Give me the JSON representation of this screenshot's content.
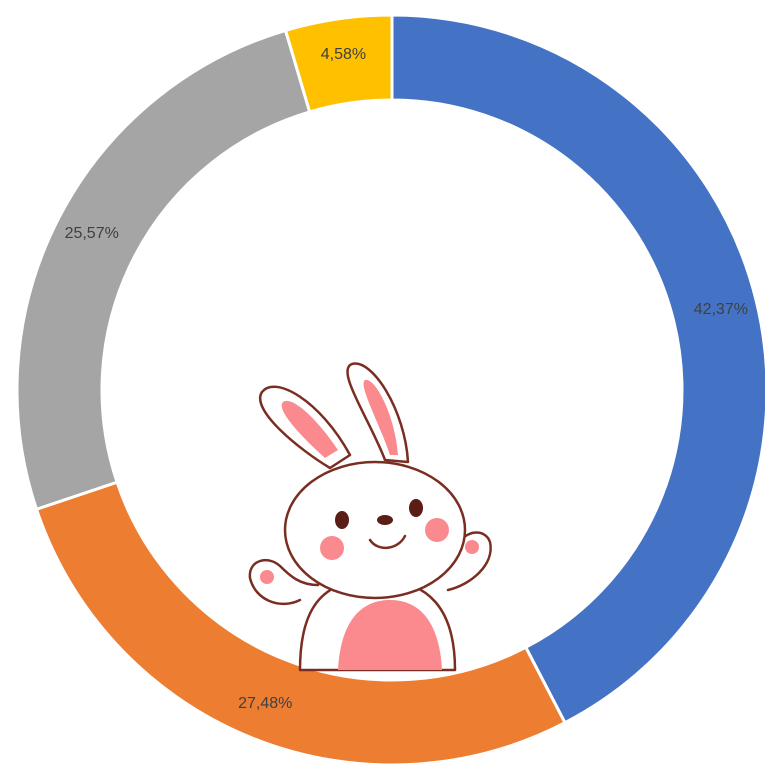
{
  "chart_data": {
    "type": "donut",
    "values": [
      42.37,
      27.48,
      25.57,
      4.58
    ],
    "value_labels": [
      "42,37%",
      "27,48%",
      "25,57%",
      "4,58%"
    ],
    "colors": [
      "#4472c4",
      "#ed7d31",
      "#a5a5a5",
      "#ffc000"
    ]
  }
}
